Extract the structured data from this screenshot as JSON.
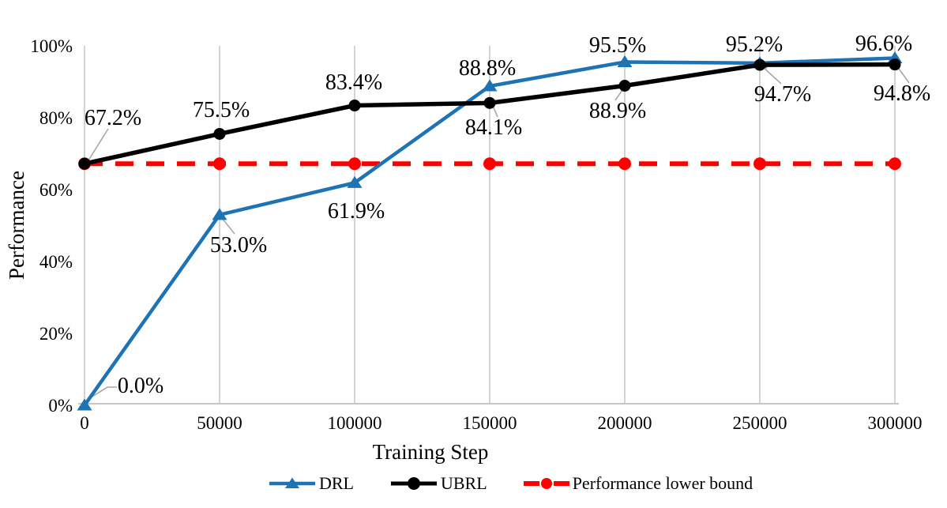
{
  "chart_data": {
    "type": "line",
    "title": "",
    "xlabel": "Training Step",
    "ylabel": "Performance",
    "x": [
      0,
      50000,
      100000,
      150000,
      200000,
      250000,
      300000
    ],
    "x_tick_labels": [
      "0",
      "50000",
      "100000",
      "150000",
      "200000",
      "250000",
      "300000"
    ],
    "y_ticks": [
      0,
      20,
      40,
      60,
      80,
      100
    ],
    "y_tick_labels": [
      "0%",
      "20%",
      "40%",
      "60%",
      "80%",
      "100%"
    ],
    "ylim": [
      0,
      100
    ],
    "grid": "vertical-only",
    "legend_position": "bottom-center",
    "colors": {
      "drl_blue": "#1E73B5",
      "ubrl_black": "#000000",
      "bound_red": "#FE0000",
      "gridline": "#D4D4D4",
      "axis_line": "#C6C6C6",
      "leader_gray": "#A8A8A8",
      "label_text": "#000000"
    },
    "series": [
      {
        "name": "DRL",
        "color": "#1E73B5",
        "marker": "triangle",
        "line_style": "solid",
        "values": [
          0.0,
          53.0,
          61.9,
          88.8,
          95.5,
          95.2,
          96.6
        ],
        "labels": [
          "0.0%",
          "53.0%",
          "61.9%",
          "88.8%",
          "95.5%",
          "95.2%",
          "96.6%"
        ]
      },
      {
        "name": "UBRL",
        "color": "#000000",
        "marker": "circle",
        "line_style": "solid",
        "values": [
          67.2,
          75.5,
          83.4,
          84.1,
          88.9,
          94.7,
          94.8
        ],
        "labels": [
          "67.2%",
          "75.5%",
          "83.4%",
          "84.1%",
          "88.9%",
          "94.7%",
          "94.8%"
        ]
      },
      {
        "name": "Performance lower bound",
        "color": "#FE0000",
        "marker": "circle",
        "line_style": "dashed",
        "values": [
          67.2,
          67.2,
          67.2,
          67.2,
          67.2,
          67.2,
          67.2
        ],
        "labels": []
      }
    ]
  }
}
